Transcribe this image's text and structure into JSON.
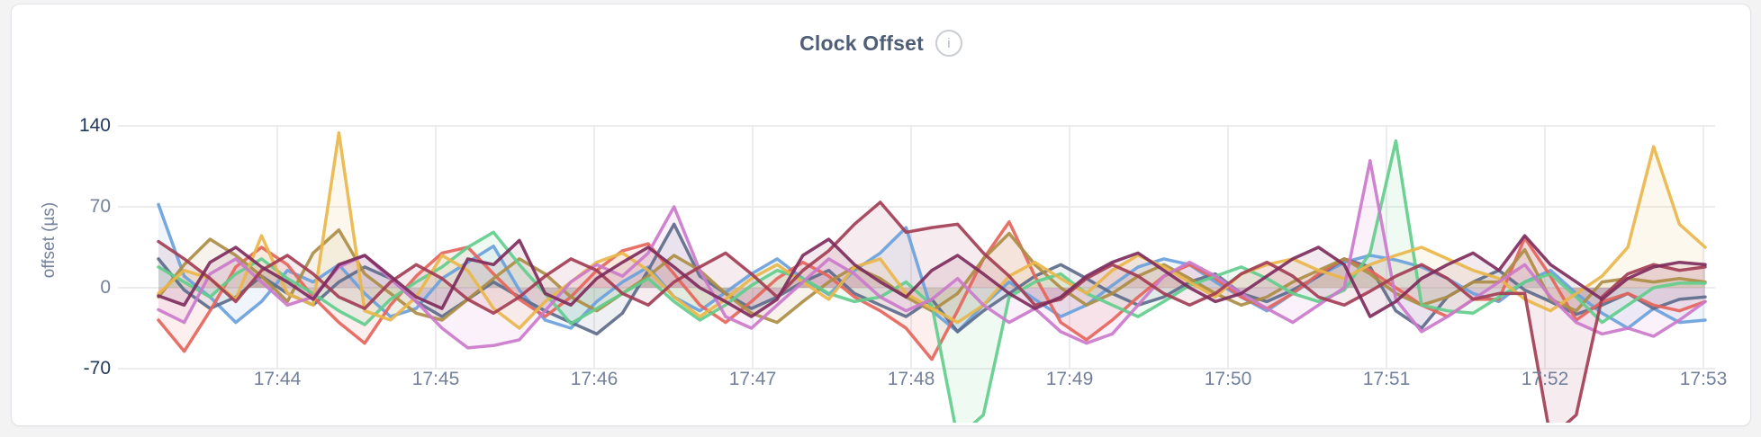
{
  "page": {
    "background": "#f3f3f4"
  },
  "card": {
    "title": "Clock Offset",
    "info_icon_glyph": "i"
  },
  "chart_data": {
    "type": "line",
    "title": "Clock Offset",
    "xlabel": "",
    "ylabel": "offset (µs)",
    "x_tick_labels": [
      "17:44",
      "17:45",
      "17:46",
      "17:47",
      "17:48",
      "17:49",
      "17:50",
      "17:51",
      "17:52",
      "17:53"
    ],
    "y_tick_labels": [
      "140",
      "70",
      "0",
      "-70"
    ],
    "y_ticks": [
      140,
      70,
      0,
      -70
    ],
    "ylim": [
      -88,
      150
    ],
    "x_range_note": "samples every ~10s from ~17:43:15 to ~17:53:15",
    "grid": true,
    "legend": false,
    "fill": "area-to-zero",
    "series": [
      {
        "name": "series-1",
        "color": "#6aa1dc",
        "values": [
          72,
          10,
          -8,
          -30,
          -12,
          15,
          5,
          20,
          -5,
          -25,
          -18,
          8,
          22,
          36,
          -2,
          -28,
          -35,
          -12,
          5,
          18,
          -8,
          -20,
          -4,
          12,
          25,
          8,
          -6,
          15,
          30,
          52,
          -20,
          -38,
          -15,
          5,
          -10,
          -25,
          -15,
          2,
          18,
          25,
          20,
          5,
          -8,
          -20,
          -5,
          10,
          22,
          28,
          24,
          18,
          8,
          -5,
          -12,
          5,
          15,
          -5,
          -22,
          -35,
          -18,
          -30,
          -28
        ]
      },
      {
        "name": "series-2",
        "color": "#5d6d8b",
        "values": [
          25,
          -2,
          -18,
          -8,
          10,
          -5,
          -15,
          5,
          18,
          8,
          -12,
          -25,
          -10,
          5,
          -8,
          -20,
          -30,
          -40,
          -22,
          15,
          55,
          10,
          -5,
          -18,
          -8,
          5,
          15,
          -5,
          -15,
          -25,
          -10,
          -38,
          -20,
          -5,
          10,
          20,
          8,
          -5,
          -15,
          -8,
          5,
          12,
          -5,
          -12,
          -2,
          10,
          25,
          18,
          -20,
          -35,
          -8,
          5,
          15,
          -2,
          -12,
          -23,
          -15,
          -5,
          -18,
          -10,
          -8
        ]
      },
      {
        "name": "series-3",
        "color": "#e5655b",
        "values": [
          -28,
          -55,
          -20,
          18,
          35,
          20,
          -8,
          -30,
          -48,
          -15,
          10,
          30,
          35,
          12,
          -10,
          -25,
          -8,
          15,
          32,
          38,
          12,
          -15,
          -30,
          -12,
          8,
          22,
          10,
          -8,
          -20,
          -35,
          -62,
          -20,
          25,
          57,
          10,
          -30,
          -45,
          -28,
          -8,
          10,
          20,
          8,
          -8,
          -18,
          -5,
          12,
          25,
          15,
          0,
          -15,
          -25,
          -10,
          -10,
          43,
          10,
          -28,
          -12,
          -5,
          -15,
          -20,
          -12
        ]
      },
      {
        "name": "series-4",
        "color": "#ad8d45",
        "values": [
          -8,
          20,
          42,
          28,
          10,
          -12,
          30,
          50,
          12,
          -5,
          -22,
          -28,
          -10,
          8,
          25,
          12,
          -8,
          -20,
          -5,
          10,
          28,
          15,
          -5,
          -22,
          -30,
          -12,
          5,
          18,
          8,
          -8,
          -20,
          -5,
          25,
          47,
          20,
          0,
          -15,
          -5,
          10,
          20,
          8,
          -5,
          -15,
          -8,
          5,
          15,
          25,
          12,
          -5,
          -15,
          -8,
          5,
          5,
          33,
          -10,
          -20,
          5,
          8,
          5,
          8,
          5
        ]
      },
      {
        "name": "series-5",
        "color": "#62cd8c",
        "values": [
          18,
          5,
          -8,
          12,
          25,
          8,
          -5,
          -20,
          -32,
          -10,
          5,
          18,
          35,
          48,
          20,
          -5,
          -31,
          -18,
          -5,
          8,
          -12,
          -28,
          -15,
          2,
          15,
          8,
          -5,
          -12,
          -8,
          5,
          -15,
          -130,
          -110,
          -8,
          5,
          12,
          -5,
          -15,
          -25,
          -12,
          2,
          10,
          18,
          8,
          -5,
          -12,
          -2,
          30,
          127,
          -15,
          -20,
          -22,
          -8,
          5,
          12,
          -8,
          -30,
          -15,
          0,
          4,
          4
        ]
      },
      {
        "name": "series-6",
        "color": "#e9b64a",
        "values": [
          -5,
          15,
          8,
          -10,
          45,
          -5,
          -15,
          134,
          -20,
          -28,
          -8,
          28,
          15,
          -18,
          -35,
          -12,
          5,
          22,
          30,
          15,
          -8,
          -25,
          -10,
          8,
          20,
          5,
          -10,
          18,
          25,
          -5,
          -18,
          -30,
          -15,
          10,
          22,
          8,
          -5,
          15,
          28,
          18,
          5,
          -8,
          12,
          20,
          25,
          15,
          8,
          20,
          28,
          35,
          25,
          15,
          8,
          -10,
          -20,
          -5,
          10,
          35,
          122,
          55,
          35
        ]
      },
      {
        "name": "series-7",
        "color": "#cb79cb",
        "values": [
          -19,
          -30,
          12,
          25,
          5,
          -15,
          -8,
          18,
          28,
          8,
          -12,
          -35,
          -52,
          -50,
          -45,
          -20,
          5,
          20,
          10,
          30,
          70,
          15,
          -25,
          -35,
          -15,
          5,
          25,
          12,
          -8,
          -20,
          -10,
          8,
          -15,
          -30,
          -18,
          -38,
          -48,
          -40,
          -15,
          10,
          22,
          10,
          -5,
          -18,
          -30,
          -15,
          0,
          110,
          -10,
          -38,
          -25,
          -10,
          5,
          20,
          -8,
          -30,
          -40,
          -35,
          -42,
          -28,
          -12
        ]
      },
      {
        "name": "series-8",
        "color": "#a33e55",
        "values": [
          40,
          25,
          8,
          -12,
          15,
          28,
          12,
          -8,
          -18,
          5,
          20,
          8,
          -10,
          -22,
          -8,
          10,
          25,
          15,
          -5,
          -15,
          5,
          18,
          30,
          12,
          -8,
          15,
          32,
          55,
          74,
          48,
          52,
          55,
          30,
          10,
          -15,
          -10,
          8,
          20,
          10,
          -5,
          -15,
          -5,
          12,
          22,
          10,
          -8,
          -15,
          -3,
          10,
          20,
          8,
          -10,
          -5,
          -5,
          -130,
          -110,
          -8,
          12,
          20,
          15,
          18
        ]
      },
      {
        "name": "series-9",
        "color": "#7e2d5d",
        "values": [
          -7,
          -15,
          22,
          35,
          18,
          5,
          -10,
          20,
          28,
          10,
          -8,
          -18,
          25,
          20,
          41,
          -5,
          -15,
          8,
          22,
          35,
          18,
          0,
          -12,
          -25,
          -10,
          28,
          42,
          20,
          5,
          -8,
          15,
          28,
          12,
          -5,
          -18,
          -8,
          10,
          22,
          30,
          15,
          0,
          -12,
          -5,
          10,
          25,
          35,
          20,
          -25,
          -12,
          8,
          20,
          30,
          15,
          45,
          20,
          5,
          -10,
          8,
          18,
          22,
          20
        ]
      }
    ]
  },
  "colors": {
    "page_bg": "#f3f3f4",
    "card_bg": "#ffffff",
    "card_border": "#e3e4e7",
    "grid": "#ececee",
    "title": "#4e5e76",
    "tick_label": "#74819b",
    "tick_label_strong": "#22395e",
    "info_icon_border": "#c9ccd0"
  }
}
